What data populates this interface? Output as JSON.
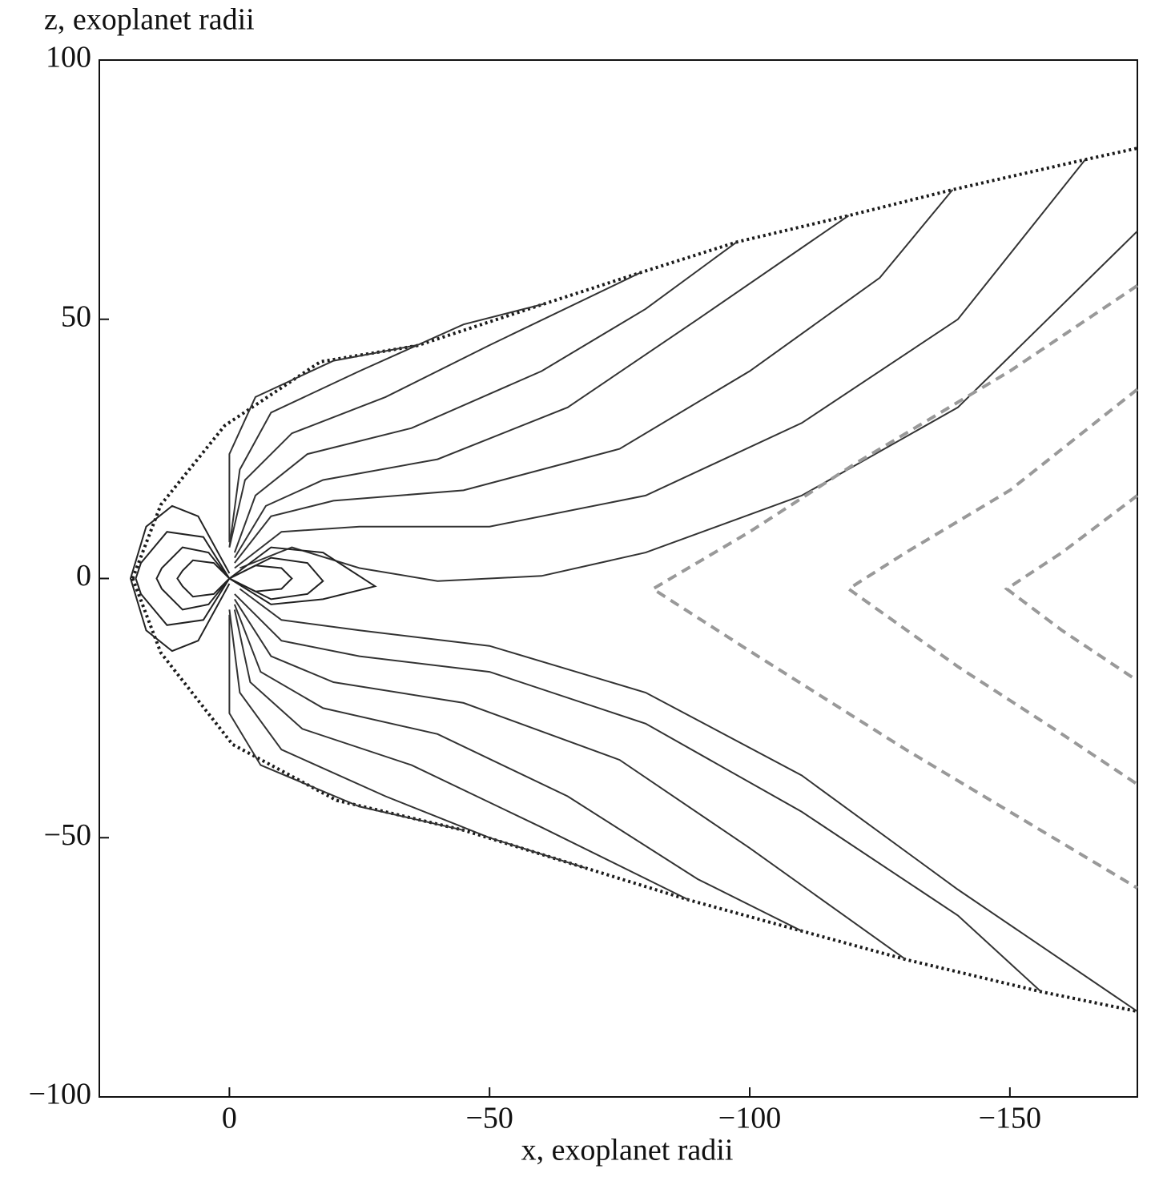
{
  "chart_data": {
    "type": "line",
    "x_label": "x, exoplanet radii",
    "y_label": "z, exoplanet radii",
    "xlim": [
      25,
      -174.5
    ],
    "ylim": [
      -100,
      100
    ],
    "xticks": [
      0,
      {
        "value": -50,
        "label": "−50"
      },
      {
        "value": -100,
        "label": "−100"
      },
      {
        "value": -150,
        "label": "−150"
      }
    ],
    "yticks": [
      100,
      50,
      0,
      {
        "value": -50,
        "label": "−50"
      },
      {
        "value": -100,
        "label": "−100"
      }
    ],
    "grid": false,
    "series": [
      {
        "color": "#1a1a1a",
        "style": "dotted",
        "x": [
          18.6,
          13.2,
          0.9,
          -17.5,
          -36,
          -60.6,
          -79,
          -97.5,
          -119,
          -139,
          -164.5,
          -174.5
        ],
        "values": [
          0,
          14.2,
          29.5,
          41.8,
          44.9,
          53,
          59,
          64.9,
          70,
          75,
          80.8,
          83
        ]
      },
      {
        "color": "#1a1a1a",
        "style": "dotted",
        "x": [
          18.6,
          13.2,
          -0.6,
          -20.6,
          -45.2,
          -68.3,
          -88.3,
          -110,
          -130,
          -156,
          -174.5
        ],
        "values": [
          0,
          -14.3,
          -32,
          -42.8,
          -48.6,
          -55.8,
          -62,
          -68,
          -73.5,
          -79.7,
          -83.5
        ]
      },
      {
        "color": "#333333",
        "style": "solid",
        "x": [
          -2,
          -12,
          -25,
          -40,
          -60,
          -80,
          -110,
          -140,
          -174.5
        ],
        "values": [
          2,
          6,
          2,
          -0.5,
          0.5,
          5,
          16,
          33,
          67
        ]
      },
      {
        "color": "#333333",
        "style": "solid",
        "x": [
          -1,
          -10,
          -25,
          -50,
          -80,
          -110,
          -140,
          -164.5
        ],
        "values": [
          2,
          9,
          10,
          10,
          16,
          30,
          50,
          80.8
        ]
      },
      {
        "color": "#333333",
        "style": "solid",
        "x": [
          -1,
          -8,
          -20,
          -45,
          -75,
          -100,
          -125,
          -139
        ],
        "values": [
          3,
          12,
          15,
          17,
          25,
          40,
          58,
          75
        ]
      },
      {
        "color": "#333333",
        "style": "solid",
        "x": [
          -1,
          -7,
          -18,
          -40,
          -65,
          -90,
          -119
        ],
        "values": [
          4,
          14,
          19,
          23,
          33,
          50,
          70
        ]
      },
      {
        "color": "#333333",
        "style": "solid",
        "x": [
          -1,
          -5,
          -15,
          -35,
          -60,
          -80,
          -97.5
        ],
        "values": [
          5,
          16,
          24,
          29,
          40,
          52,
          64.9
        ]
      },
      {
        "color": "#333333",
        "style": "solid",
        "x": [
          0,
          -3,
          -12,
          -30,
          -50,
          -79
        ],
        "values": [
          6,
          19,
          28,
          35,
          45,
          59
        ]
      },
      {
        "color": "#333333",
        "style": "solid",
        "x": [
          0,
          -2,
          -8,
          -25,
          -45,
          -60.6
        ],
        "values": [
          6,
          21,
          32,
          40,
          49,
          53
        ]
      },
      {
        "color": "#333333",
        "style": "solid",
        "x": [
          0,
          0,
          -5,
          -20,
          -36
        ],
        "values": [
          7,
          24,
          35,
          42,
          45
        ]
      },
      {
        "color": "#333333",
        "style": "solid",
        "x": [
          -2,
          -10,
          -25,
          -50,
          -80,
          -110,
          -140,
          -174.5
        ],
        "values": [
          -2,
          -8,
          -10,
          -13,
          -22,
          -38,
          -60,
          -83.5
        ]
      },
      {
        "color": "#333333",
        "style": "solid",
        "x": [
          -1,
          -10,
          -25,
          -50,
          -80,
          -110,
          -140,
          -156
        ],
        "values": [
          -3,
          -12,
          -15,
          -18,
          -28,
          -45,
          -65,
          -79.7
        ]
      },
      {
        "color": "#333333",
        "style": "solid",
        "x": [
          -1,
          -8,
          -20,
          -45,
          -75,
          -100,
          -130
        ],
        "values": [
          -4,
          -15,
          -20,
          -24,
          -35,
          -52,
          -73.5
        ]
      },
      {
        "color": "#333333",
        "style": "solid",
        "x": [
          -1,
          -6,
          -18,
          -40,
          -65,
          -90,
          -110
        ],
        "values": [
          -5,
          -18,
          -25,
          -30,
          -42,
          -58,
          -68
        ]
      },
      {
        "color": "#333333",
        "style": "solid",
        "x": [
          -1,
          -4,
          -14,
          -35,
          -60,
          -88.3
        ],
        "values": [
          -6,
          -20,
          -29,
          -36,
          -48,
          -62
        ]
      },
      {
        "color": "#333333",
        "style": "solid",
        "x": [
          0,
          -2,
          -10,
          -30,
          -50,
          -68.3
        ],
        "values": [
          -6,
          -22,
          -33,
          -42,
          -50,
          -55.8
        ]
      },
      {
        "color": "#333333",
        "style": "solid",
        "x": [
          0,
          0,
          -6,
          -25,
          -45.2
        ],
        "values": [
          -7,
          -26,
          -36,
          -44,
          -48.6
        ]
      },
      {
        "color": "#222222",
        "style": "solid",
        "x": [
          0,
          6,
          11,
          16,
          19,
          16,
          11,
          6,
          0
        ],
        "values": [
          1,
          12,
          14,
          10,
          0,
          -10,
          -14,
          -12,
          -1
        ]
      },
      {
        "color": "#222222",
        "style": "solid",
        "x": [
          0,
          5,
          12,
          17,
          18,
          17,
          12,
          5,
          0
        ],
        "values": [
          0,
          8,
          9,
          3,
          0,
          -3,
          -9,
          -8,
          0
        ]
      },
      {
        "color": "#222222",
        "style": "solid",
        "x": [
          0,
          4,
          9,
          13,
          14,
          13,
          9,
          4,
          0
        ],
        "values": [
          0,
          5,
          6,
          2,
          0,
          -2,
          -6,
          -5,
          0
        ]
      },
      {
        "color": "#222222",
        "style": "solid",
        "x": [
          0,
          3,
          7,
          9,
          10,
          9,
          7,
          3,
          0
        ],
        "values": [
          0,
          3,
          3.5,
          1.5,
          0,
          -1.5,
          -3.5,
          -3,
          0
        ]
      },
      {
        "color": "#222222",
        "style": "solid",
        "x": [
          0,
          -8,
          -18,
          -28,
          -18,
          -8,
          0
        ],
        "values": [
          0,
          6,
          5,
          -1.5,
          -4,
          -5,
          0
        ]
      },
      {
        "color": "#222222",
        "style": "solid",
        "x": [
          0,
          -8,
          -15,
          -18,
          -15,
          -8,
          0
        ],
        "values": [
          0,
          4,
          3,
          -0.5,
          -3,
          -4,
          0
        ]
      },
      {
        "color": "#222222",
        "style": "solid",
        "x": [
          0,
          -5,
          -10,
          -12,
          -10,
          -5,
          0
        ],
        "values": [
          0,
          2.5,
          2,
          0,
          -2,
          -2.5,
          0
        ]
      },
      {
        "color": "#999999",
        "style": "dashed",
        "x": [
          -174.5,
          -150,
          -120,
          -100,
          -81.4,
          -100,
          -130,
          -174.5
        ],
        "values": [
          56.5,
          40,
          22,
          9,
          -2,
          -14,
          -33,
          -59.7
        ]
      },
      {
        "color": "#999999",
        "style": "dashed",
        "x": [
          -174.5,
          -150,
          -130,
          -119,
          -140,
          -160,
          -174.5
        ],
        "values": [
          36.5,
          17,
          5,
          -2,
          -17,
          -30,
          -39.7
        ]
      },
      {
        "color": "#999999",
        "style": "dashed",
        "x": [
          -174.5,
          -160,
          -149.4,
          -160,
          -174.5
        ],
        "values": [
          16,
          5,
          -2,
          -10,
          -19.7
        ]
      }
    ]
  }
}
